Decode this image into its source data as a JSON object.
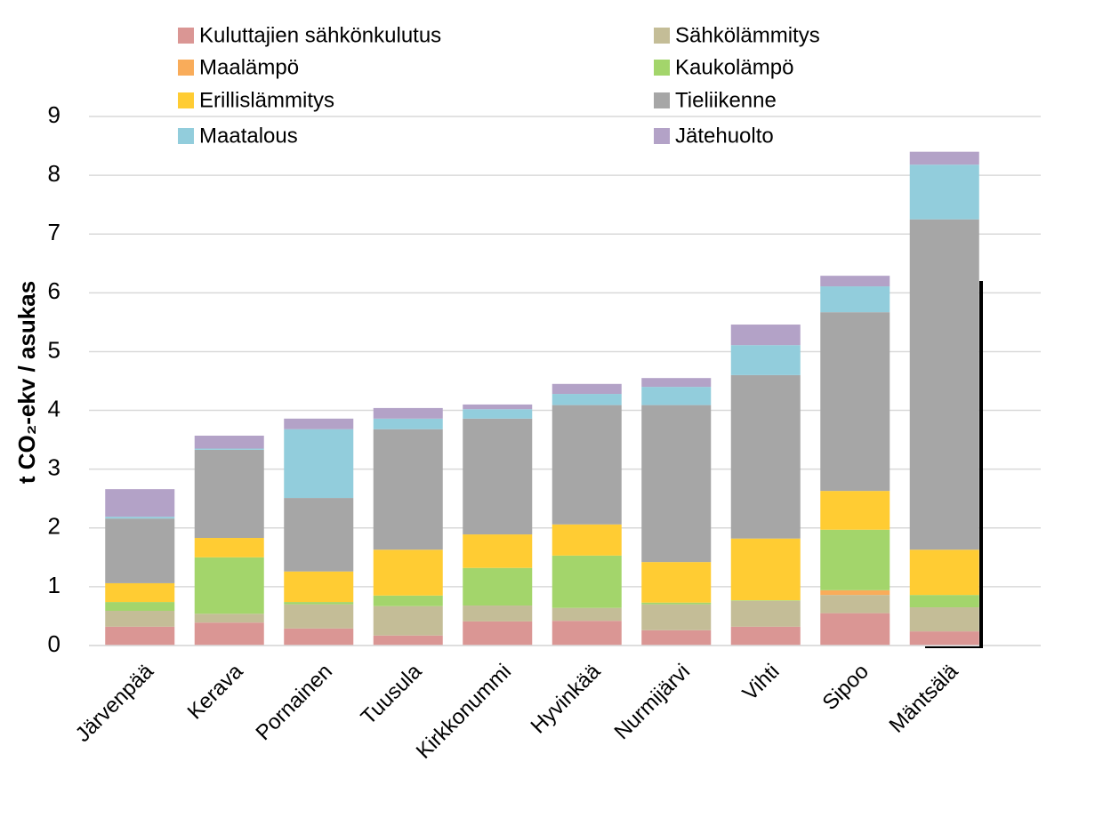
{
  "chart_data": {
    "type": "stacked_bar",
    "y_label": "t CO₂-ekv / asukas",
    "categories": [
      "Järvenpää",
      "Kerava",
      "Pornainen",
      "Tuusula",
      "Kirkkonummi",
      "Hyvinkää",
      "Nurmijärvi",
      "Vihti",
      "Sipoo",
      "Mäntsälä"
    ],
    "series": [
      {
        "name": "Kuluttajien sähkönkulutus",
        "color": "#da9694",
        "values": [
          0.32,
          0.39,
          0.29,
          0.17,
          0.41,
          0.42,
          0.26,
          0.32,
          0.55,
          0.24
        ]
      },
      {
        "name": "Sähkölämmitys",
        "color": "#c4bd97",
        "values": [
          0.27,
          0.15,
          0.41,
          0.5,
          0.27,
          0.22,
          0.44,
          0.44,
          0.31,
          0.41
        ]
      },
      {
        "name": "Maalämpö",
        "color": "#f9ac5a",
        "values": [
          0,
          0,
          0,
          0,
          0,
          0,
          0,
          0,
          0.08,
          0
        ]
      },
      {
        "name": "Kaukolämpö",
        "color": "#a3d56b",
        "values": [
          0.15,
          0.96,
          0.04,
          0.18,
          0.64,
          0.89,
          0.03,
          0.01,
          1.03,
          0.21
        ]
      },
      {
        "name": "Erillislämmitys",
        "color": "#ffcc33",
        "values": [
          0.32,
          0.33,
          0.52,
          0.78,
          0.57,
          0.53,
          0.69,
          1.05,
          0.66,
          0.77
        ]
      },
      {
        "name": "Tieliikenne",
        "color": "#a6a6a6",
        "values": [
          1.1,
          1.5,
          1.25,
          2.05,
          1.97,
          2.03,
          2.67,
          2.78,
          3.04,
          5.62
        ]
      },
      {
        "name": "Maatalous",
        "color": "#92cddc",
        "values": [
          0.03,
          0.02,
          1.17,
          0.18,
          0.16,
          0.19,
          0.31,
          0.51,
          0.44,
          0.93
        ]
      },
      {
        "name": "Jätehuolto",
        "color": "#b3a2c7",
        "values": [
          0.47,
          0.22,
          0.18,
          0.18,
          0.08,
          0.17,
          0.15,
          0.35,
          0.18,
          0.22
        ]
      }
    ],
    "ylim": [
      0,
      9
    ],
    "yticks": [
      0,
      1,
      2,
      3,
      4,
      5,
      6,
      7,
      8,
      9
    ],
    "grid": true
  }
}
